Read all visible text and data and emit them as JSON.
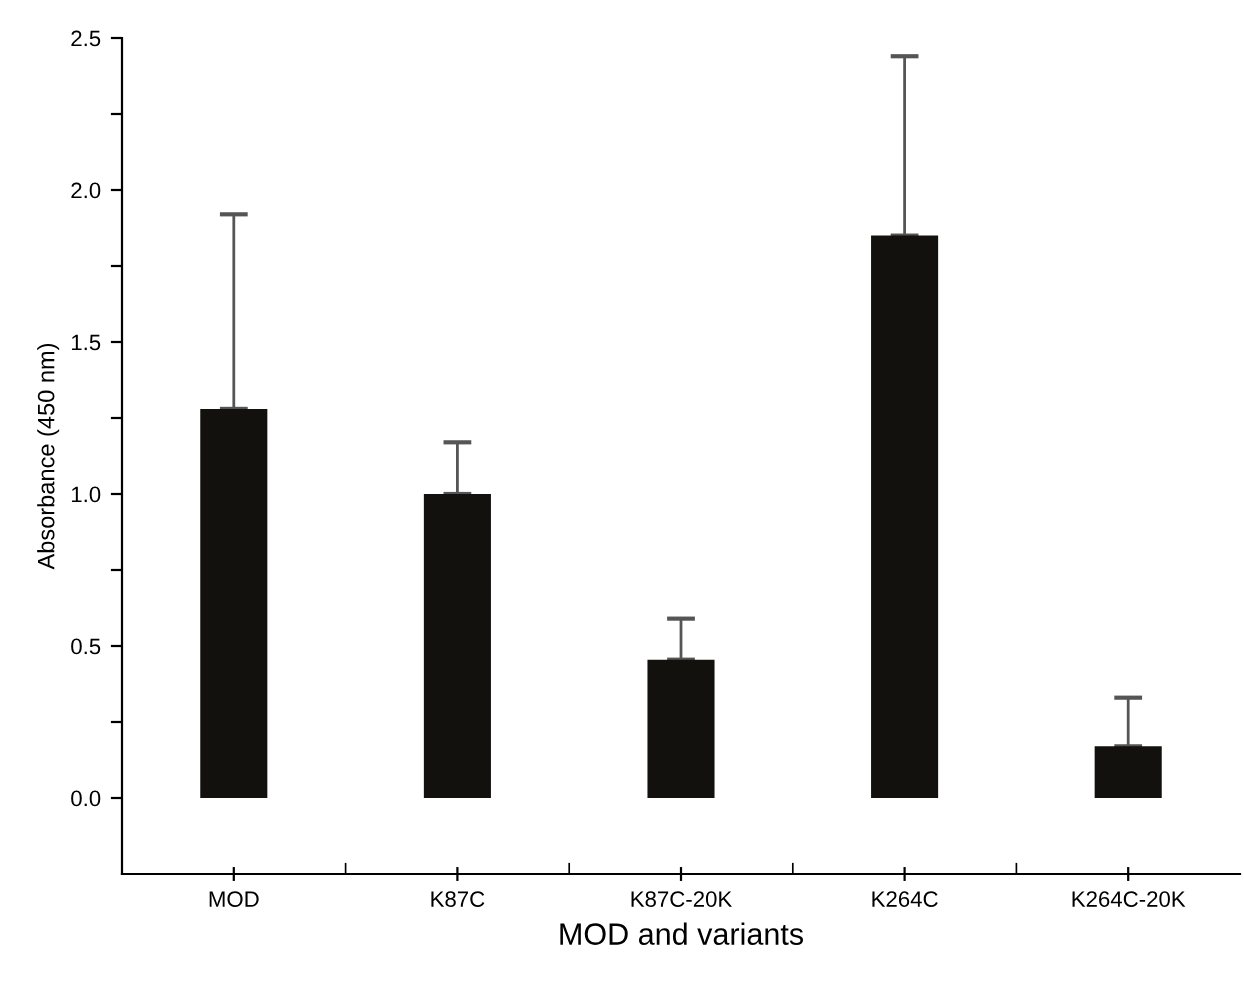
{
  "chart_data": {
    "type": "bar",
    "xlabel": "MOD and variants",
    "ylabel": "Absorbance (450 nm)",
    "categories": [
      "MOD",
      "K87C",
      "K87C-20K",
      "K264C",
      "K264C-20K"
    ],
    "values": [
      1.28,
      1.0,
      0.455,
      1.85,
      0.17
    ],
    "errors": [
      [
        1.28,
        1.92
      ],
      [
        1.0,
        1.17
      ],
      [
        0.455,
        0.59
      ],
      [
        1.85,
        2.44
      ],
      [
        0.17,
        0.33
      ]
    ],
    "color": "#12110d",
    "ylim": [
      -0.25,
      2.5
    ],
    "yticks": [
      {
        "value": 0,
        "label": "0.0"
      },
      {
        "value": 0.25,
        "label": null
      },
      {
        "value": 0.5,
        "label": "0.5"
      },
      {
        "value": 0.75,
        "label": null
      },
      {
        "value": 1,
        "label": "1.0"
      },
      {
        "value": 1.25,
        "label": null
      },
      {
        "value": 1.5,
        "label": "1.5"
      },
      {
        "value": 1.75,
        "label": null
      },
      {
        "value": 2,
        "label": "2.0"
      },
      {
        "value": 2.25,
        "label": null
      },
      {
        "value": 2.5,
        "label": "2.5"
      }
    ],
    "grid": false
  }
}
